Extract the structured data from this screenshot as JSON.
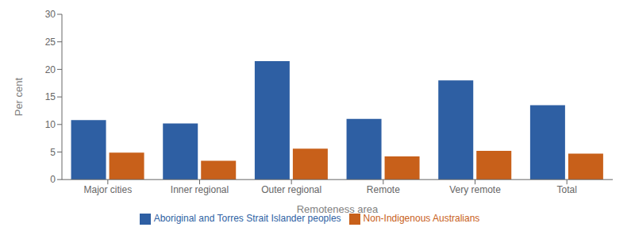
{
  "chart_data": {
    "type": "bar",
    "categories": [
      "Major cities",
      "Inner regional",
      "Outer regional",
      "Remote",
      "Very remote",
      "Total"
    ],
    "series": [
      {
        "name": "Aboriginal and Torres Strait Islander peoples",
        "color": "#2E5FA3",
        "values": [
          10.8,
          10.2,
          21.5,
          11.0,
          18.0,
          13.5
        ]
      },
      {
        "name": "Non-Indigenous Australians",
        "color": "#C8601A",
        "values": [
          4.9,
          3.4,
          5.6,
          4.2,
          5.2,
          4.7
        ]
      }
    ],
    "xlabel": "Remoteness area",
    "ylabel": "Per cent",
    "ylim": [
      0,
      30
    ],
    "yticks": [
      0,
      5,
      10,
      15,
      20,
      25,
      30
    ],
    "grid": false,
    "legend": "bottom"
  }
}
